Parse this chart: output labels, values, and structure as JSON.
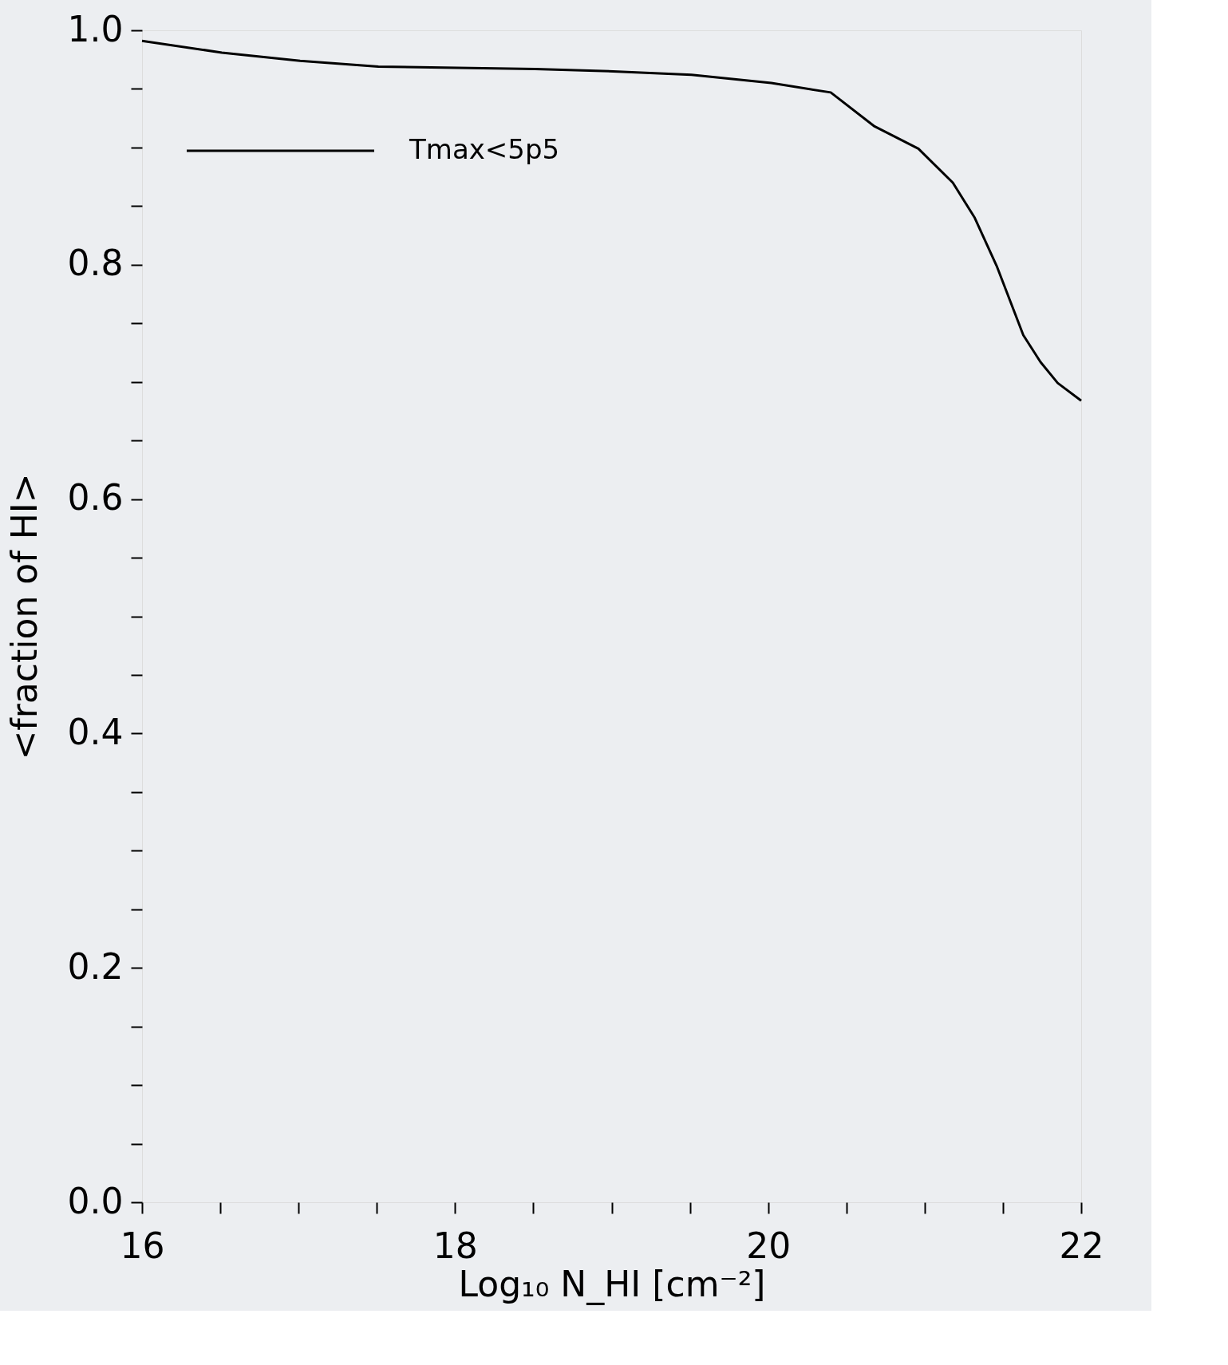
{
  "chart_data": {
    "type": "line",
    "xlabel": "Log₁₀ N_HI [cm⁻²]",
    "ylabel": "<fraction of HI>",
    "x": [
      16.0,
      16.51,
      17.01,
      17.51,
      18.01,
      18.51,
      19.01,
      19.51,
      20.02,
      20.4,
      20.68,
      20.96,
      21.18,
      21.32,
      21.46,
      21.63,
      21.74,
      21.85,
      22.0
    ],
    "series": [
      {
        "name": "Tmax<5p5",
        "color": "#000000",
        "values": [
          0.991,
          0.981,
          0.974,
          0.969,
          0.968,
          0.967,
          0.965,
          0.962,
          0.955,
          0.947,
          0.918,
          0.899,
          0.87,
          0.84,
          0.799,
          0.74,
          0.717,
          0.699,
          0.684
        ]
      }
    ],
    "xlim": [
      16,
      22
    ],
    "ylim": [
      0,
      1.0
    ],
    "xticks": [
      16,
      {
        "value": 16.5,
        "label": null
      },
      {
        "value": 17,
        "label": null
      },
      {
        "value": 17.5,
        "label": null
      },
      18,
      {
        "value": 18.5,
        "label": null
      },
      {
        "value": 19,
        "label": null
      },
      {
        "value": 19.5,
        "label": null
      },
      20,
      {
        "value": 20.5,
        "label": null
      },
      {
        "value": 21,
        "label": null
      },
      {
        "value": 21.5,
        "label": null
      },
      22
    ],
    "yticks": [
      {
        "value": 0,
        "label": "0.0"
      },
      {
        "value": 0.05,
        "label": null
      },
      {
        "value": 0.1,
        "label": null
      },
      {
        "value": 0.15,
        "label": null
      },
      0.2,
      {
        "value": 0.25,
        "label": null
      },
      {
        "value": 0.3,
        "label": null
      },
      {
        "value": 0.35,
        "label": null
      },
      0.4,
      {
        "value": 0.45,
        "label": null
      },
      {
        "value": 0.5,
        "label": null
      },
      {
        "value": 0.55,
        "label": null
      },
      0.6,
      {
        "value": 0.65,
        "label": null
      },
      {
        "value": 0.7,
        "label": null
      },
      {
        "value": 0.75,
        "label": null
      },
      0.8,
      {
        "value": 0.85,
        "label": null
      },
      {
        "value": 0.9,
        "label": null
      },
      {
        "value": 0.95,
        "label": null
      },
      {
        "value": 1.0,
        "label": "1.0"
      }
    ],
    "grid": false,
    "legend": "top left",
    "line_style": "solid",
    "marker": "none"
  }
}
